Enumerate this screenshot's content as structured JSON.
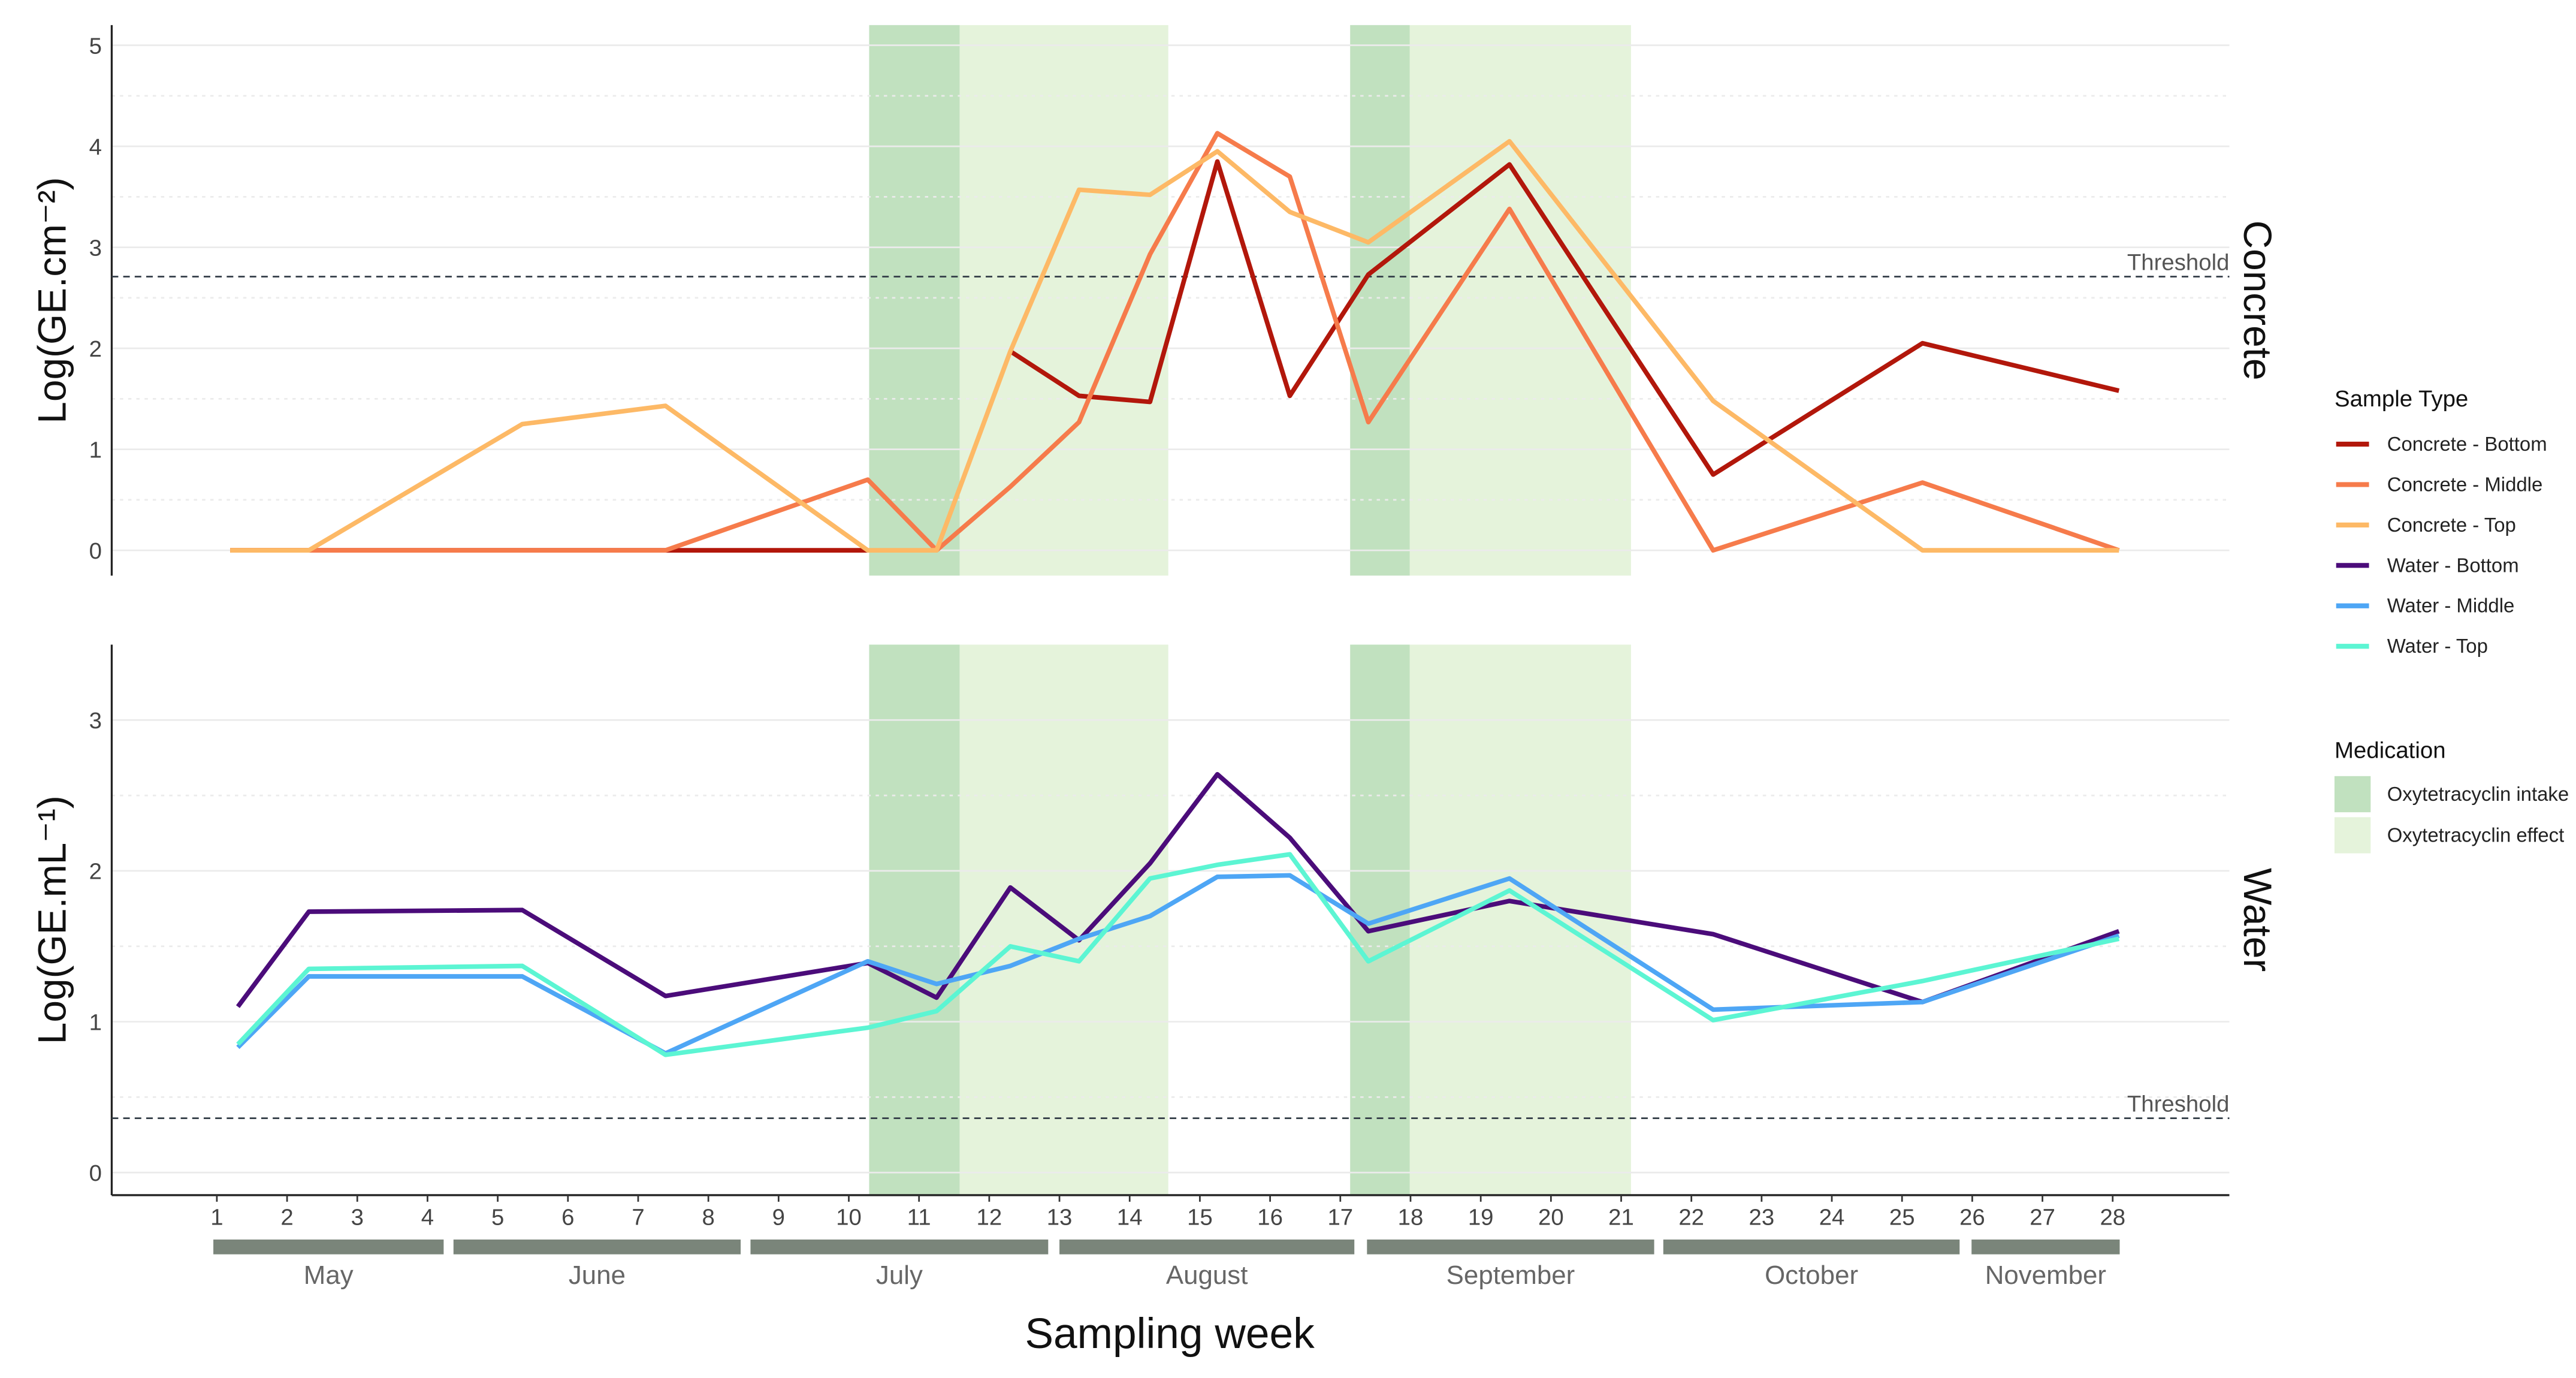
{
  "chart_data": [
    {
      "type": "line",
      "panel": "Concrete",
      "ylabel": "Log(GE.cm⁻²)",
      "ylim": [
        -0.25,
        5.2
      ],
      "yticks": [
        0,
        1,
        2,
        3,
        4,
        5
      ],
      "threshold": {
        "value": 2.71,
        "label": "Threshold"
      },
      "x": [
        1.19,
        2.31,
        5.35,
        7.39,
        10.27,
        11.25,
        12.3,
        13.28,
        14.29,
        15.25,
        16.28,
        17.4,
        19.41,
        22.31,
        25.29,
        28.09
      ],
      "series": [
        {
          "name": "Concrete - Bottom",
          "color": "#b2170b",
          "values": [
            0,
            0,
            0,
            0,
            0,
            null,
            1.97,
            1.53,
            1.47,
            3.85,
            1.53,
            2.73,
            3.82,
            0.75,
            2.05,
            1.58
          ]
        },
        {
          "name": "Concrete - Middle",
          "color": "#f67b4b",
          "values": [
            0,
            0,
            0,
            0,
            0.7,
            0,
            0.63,
            1.27,
            2.93,
            4.13,
            3.7,
            1.27,
            3.38,
            0,
            0.67,
            0
          ]
        },
        {
          "name": "Concrete - Top",
          "color": "#fdb966",
          "values": [
            0,
            0,
            1.25,
            1.43,
            0,
            0,
            1.97,
            3.57,
            3.52,
            3.95,
            3.35,
            3.05,
            4.05,
            1.48,
            0,
            0
          ]
        }
      ]
    },
    {
      "type": "line",
      "panel": "Water",
      "ylabel": "Log(GE.mL⁻¹)",
      "ylim": [
        -0.15,
        3.5
      ],
      "yticks": [
        0,
        1,
        2,
        3
      ],
      "threshold": {
        "value": 0.36,
        "label": "Threshold"
      },
      "x": [
        1.3,
        2.31,
        5.35,
        7.39,
        10.27,
        11.25,
        12.3,
        13.28,
        14.29,
        15.25,
        16.28,
        17.4,
        19.41,
        22.31,
        25.29,
        28.09
      ],
      "series": [
        {
          "name": "Water - Bottom",
          "color": "#4b0c7a",
          "values": [
            1.1,
            1.73,
            1.74,
            1.17,
            1.39,
            1.16,
            1.89,
            1.54,
            2.05,
            2.64,
            2.22,
            1.6,
            1.8,
            1.58,
            1.13,
            1.6
          ]
        },
        {
          "name": "Water - Middle",
          "color": "#4ea6f5",
          "values": [
            0.83,
            1.3,
            1.3,
            0.79,
            1.4,
            1.25,
            1.37,
            1.55,
            1.7,
            1.96,
            1.97,
            1.65,
            1.95,
            1.08,
            1.13,
            1.57
          ]
        },
        {
          "name": "Water - Top",
          "color": "#5cf5d3",
          "values": [
            0.85,
            1.35,
            1.37,
            0.78,
            0.96,
            1.07,
            1.5,
            1.4,
            1.95,
            2.04,
            2.11,
            1.4,
            1.87,
            1.01,
            1.27,
            1.55
          ]
        }
      ]
    }
  ],
  "shading": [
    {
      "type": "Oxytetracyclin intake",
      "from": 10.29,
      "to": 11.58
    },
    {
      "type": "Oxytetracyclin effect",
      "from": 11.58,
      "to": 14.55
    },
    {
      "type": "Oxytetracyclin intake",
      "from": 17.14,
      "to": 17.99
    },
    {
      "type": "Oxytetracyclin effect",
      "from": 17.99,
      "to": 21.14
    }
  ],
  "xlabel": "Sampling week",
  "xticks": [
    1,
    2,
    3,
    4,
    5,
    6,
    7,
    8,
    9,
    10,
    11,
    12,
    13,
    14,
    15,
    16,
    17,
    18,
    19,
    20,
    21,
    22,
    23,
    24,
    25,
    26,
    27,
    28
  ],
  "xlim": [
    0.15,
    30.15
  ],
  "months": [
    {
      "label": "May",
      "from": 0.95,
      "to": 4.23
    },
    {
      "label": "June",
      "from": 4.37,
      "to": 8.46
    },
    {
      "label": "July",
      "from": 8.6,
      "to": 12.84
    },
    {
      "label": "August",
      "from": 13.0,
      "to": 17.2
    },
    {
      "label": "September",
      "from": 17.38,
      "to": 21.47
    },
    {
      "label": "October",
      "from": 21.6,
      "to": 25.82
    },
    {
      "label": "November",
      "from": 25.99,
      "to": 28.1
    }
  ],
  "legend": {
    "sample_title": "Sample Type",
    "medication_title": "Medication",
    "medication": [
      {
        "name": "Oxytetracyclin intake",
        "color": "#c1e1bf"
      },
      {
        "name": "Oxytetracyclin effect",
        "color": "#e5f3db"
      }
    ],
    "placement": "right"
  },
  "colors": {
    "month_bar": "#7a857a",
    "grid": "#ebebeb",
    "threshold": "#333d47"
  }
}
